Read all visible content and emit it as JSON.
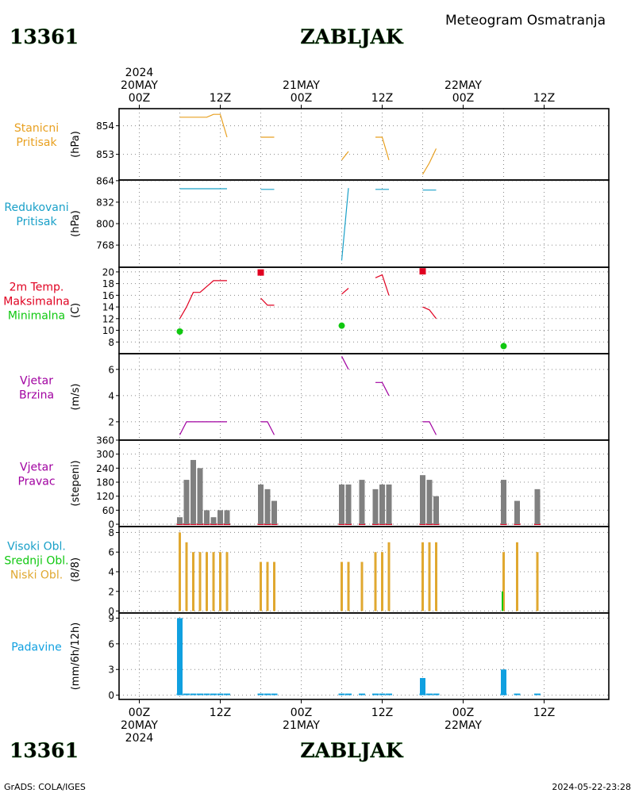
{
  "header": {
    "station_id": "13361",
    "station_name": "ZABLJAK",
    "product": "Meteogram Osmatranja"
  },
  "footer": {
    "credit": "GrADS: COLA/IGES",
    "timestamp": "2024-05-22-23:28"
  },
  "colors": {
    "pressure": "#e8a020",
    "reduced": "#19a0c8",
    "tmax": "#e00020",
    "tmin": "#10c810",
    "wind": "#a000a0",
    "bar": "#808080",
    "clouds": "#e0a830",
    "precip": "#10a0e0"
  },
  "time_axis": {
    "top_labels": [
      {
        "t": 0,
        "lines": [
          "2024",
          "20MAY",
          "00Z"
        ]
      },
      {
        "t": 12,
        "lines": [
          "12Z"
        ]
      },
      {
        "t": 24,
        "lines": [
          "21MAY",
          "00Z"
        ]
      },
      {
        "t": 36,
        "lines": [
          "12Z"
        ]
      },
      {
        "t": 48,
        "lines": [
          "22MAY",
          "00Z"
        ]
      },
      {
        "t": 60,
        "lines": [
          "12Z"
        ]
      }
    ],
    "bottom_labels": [
      {
        "t": 0,
        "lines": [
          "00Z",
          "20MAY",
          "2024"
        ]
      },
      {
        "t": 12,
        "lines": [
          "12Z"
        ]
      },
      {
        "t": 24,
        "lines": [
          "00Z",
          "21MAY"
        ]
      },
      {
        "t": 36,
        "lines": [
          "12Z"
        ]
      },
      {
        "t": 48,
        "lines": [
          "00Z",
          "22MAY"
        ]
      },
      {
        "t": 60,
        "lines": [
          "12Z"
        ]
      }
    ],
    "grid_hours": [
      0,
      6,
      12,
      18,
      24,
      30,
      36,
      42,
      48,
      54,
      60
    ]
  },
  "chart_data": [
    {
      "type": "line",
      "panel": "stanicni",
      "labels": [
        "Stanicni",
        "Pritisak"
      ],
      "label_color": "pressure",
      "unit": "(hPa)",
      "ylim": [
        852.1,
        854.6
      ],
      "ticks": [
        853,
        854
      ],
      "series": [
        {
          "color": "pressure",
          "points": [
            [
              6,
              854.3
            ],
            [
              10,
              854.3
            ],
            [
              11,
              854.4
            ],
            [
              12,
              854.4
            ],
            [
              13,
              853.6
            ]
          ]
        },
        {
          "color": "pressure",
          "points": [
            [
              18,
              853.6
            ],
            [
              20,
              853.6
            ]
          ]
        },
        {
          "color": "pressure",
          "points": [
            [
              30,
              852.8
            ],
            [
              31,
              853.1
            ]
          ]
        },
        {
          "color": "pressure",
          "points": [
            [
              35,
              853.6
            ],
            [
              36,
              853.6
            ],
            [
              37,
              852.8
            ]
          ]
        },
        {
          "color": "pressure",
          "points": [
            [
              42,
              852.3
            ],
            [
              43,
              852.7
            ],
            [
              44,
              853.2
            ]
          ]
        }
      ]
    },
    {
      "type": "line",
      "panel": "redukovani",
      "labels": [
        "Redukovani",
        "Pritisak"
      ],
      "label_color": "reduced",
      "unit": "(hPa)",
      "ylim": [
        735,
        865
      ],
      "ticks": [
        768,
        800,
        832,
        864
      ],
      "series": [
        {
          "color": "reduced",
          "points": [
            [
              6,
              852
            ],
            [
              13,
              852
            ]
          ]
        },
        {
          "color": "reduced",
          "points": [
            [
              18,
              851
            ],
            [
              20,
              851
            ]
          ]
        },
        {
          "color": "reduced",
          "points": [
            [
              30,
              745
            ],
            [
              31,
              853
            ]
          ]
        },
        {
          "color": "reduced",
          "points": [
            [
              35,
              851
            ],
            [
              37,
              851
            ]
          ]
        },
        {
          "color": "reduced",
          "points": [
            [
              42,
              850
            ],
            [
              44,
              850
            ]
          ]
        }
      ]
    },
    {
      "type": "line",
      "panel": "temperature",
      "labels": [
        "2m Temp.",
        "Maksimalna",
        "Minimalna"
      ],
      "label_colors": [
        "tmax",
        "tmax",
        "tmin"
      ],
      "unit": "(C)",
      "ylim": [
        6,
        20.8
      ],
      "ticks": [
        8,
        10,
        12,
        14,
        16,
        18,
        20
      ],
      "series": [
        {
          "color": "tmax",
          "points": [
            [
              6,
              12
            ],
            [
              7,
              14
            ],
            [
              8,
              16.5
            ],
            [
              9,
              16.5
            ],
            [
              10,
              17.5
            ],
            [
              11,
              18.5
            ],
            [
              13,
              18.5
            ]
          ]
        },
        {
          "color": "tmax",
          "points": [
            [
              18,
              15.5
            ],
            [
              19,
              14.3
            ],
            [
              20,
              14.3
            ]
          ]
        },
        {
          "color": "tmax",
          "points": [
            [
              30,
              16.2
            ],
            [
              31,
              17.2
            ]
          ]
        },
        {
          "color": "tmax",
          "points": [
            [
              35,
              19
            ],
            [
              36,
              19.5
            ],
            [
              37,
              16
            ]
          ]
        },
        {
          "color": "tmax",
          "points": [
            [
              42,
              14
            ],
            [
              43,
              13.5
            ],
            [
              44,
              12
            ]
          ]
        }
      ],
      "max_points": [
        [
          18,
          19.9
        ],
        [
          42,
          20.1
        ]
      ],
      "min_points": [
        [
          6,
          9.8
        ],
        [
          30,
          10.8
        ],
        [
          54,
          7.3
        ]
      ]
    },
    {
      "type": "line",
      "panel": "wind_speed",
      "labels": [
        "Vjetar",
        "Brzina"
      ],
      "label_color": "wind",
      "unit": "(m/s)",
      "ylim": [
        0.6,
        7.2
      ],
      "ticks": [
        2,
        4,
        6
      ],
      "series": [
        {
          "color": "wind",
          "points": [
            [
              6,
              1
            ],
            [
              7,
              2
            ],
            [
              13,
              2
            ]
          ]
        },
        {
          "color": "wind",
          "points": [
            [
              18,
              2
            ],
            [
              19,
              2
            ],
            [
              20,
              1
            ]
          ]
        },
        {
          "color": "wind",
          "points": [
            [
              30,
              7
            ],
            [
              31,
              6
            ]
          ]
        },
        {
          "color": "wind",
          "points": [
            [
              35,
              5
            ],
            [
              36,
              5
            ],
            [
              37,
              4
            ]
          ]
        },
        {
          "color": "wind",
          "points": [
            [
              42,
              2
            ],
            [
              43,
              2
            ],
            [
              44,
              1
            ]
          ]
        }
      ]
    },
    {
      "type": "bar",
      "panel": "wind_dir",
      "labels": [
        "Vjetar",
        "Pravac"
      ],
      "label_color": "wind",
      "unit": "(stepeni)",
      "ylim": [
        -10,
        360
      ],
      "ticks": [
        0,
        60,
        120,
        180,
        240,
        300,
        360
      ],
      "bar_color": "bar",
      "x": [
        6,
        7,
        8,
        9,
        10,
        11,
        12,
        13,
        18,
        19,
        20,
        30,
        31,
        33,
        35,
        36,
        37,
        42,
        43,
        44,
        54,
        56,
        59
      ],
      "values": [
        30,
        190,
        275,
        240,
        60,
        30,
        60,
        60,
        170,
        150,
        100,
        170,
        170,
        190,
        150,
        170,
        170,
        210,
        190,
        120,
        190,
        100,
        150
      ]
    },
    {
      "type": "bar",
      "panel": "clouds",
      "labels": [
        "Visoki Obl.",
        "Srednji Obl.",
        "Niski Obl."
      ],
      "label_colors": [
        "reduced",
        "tmin",
        "clouds"
      ],
      "unit": "(8/8)",
      "ylim": [
        -0.2,
        8.6
      ],
      "ticks": [
        0,
        2,
        4,
        6,
        8
      ],
      "bar_color": "clouds",
      "x": [
        6,
        7,
        8,
        9,
        10,
        11,
        12,
        13,
        18,
        19,
        20,
        30,
        31,
        33,
        35,
        36,
        37,
        42,
        43,
        44,
        54,
        56,
        59
      ],
      "values": [
        8,
        7,
        6,
        6,
        6,
        6,
        6,
        6,
        5,
        5,
        5,
        5,
        5,
        5,
        6,
        6,
        7,
        7,
        7,
        7,
        6,
        7,
        6
      ],
      "mid_x": [
        54
      ],
      "mid_values": [
        2
      ]
    },
    {
      "type": "bar",
      "panel": "precip",
      "labels": [
        "Padavine"
      ],
      "label_color": "precip",
      "unit": "(mm/6h/12h)",
      "ylim": [
        -0.5,
        9.6
      ],
      "ticks": [
        0,
        3,
        6,
        9
      ],
      "bar_color": "precip",
      "x": [
        6,
        42,
        54
      ],
      "values": [
        9,
        2,
        3
      ],
      "trace_x": [
        6,
        7,
        8,
        9,
        10,
        11,
        12,
        13,
        18,
        19,
        20,
        30,
        31,
        33,
        35,
        36,
        37,
        42,
        43,
        44,
        54,
        56,
        59
      ]
    }
  ]
}
